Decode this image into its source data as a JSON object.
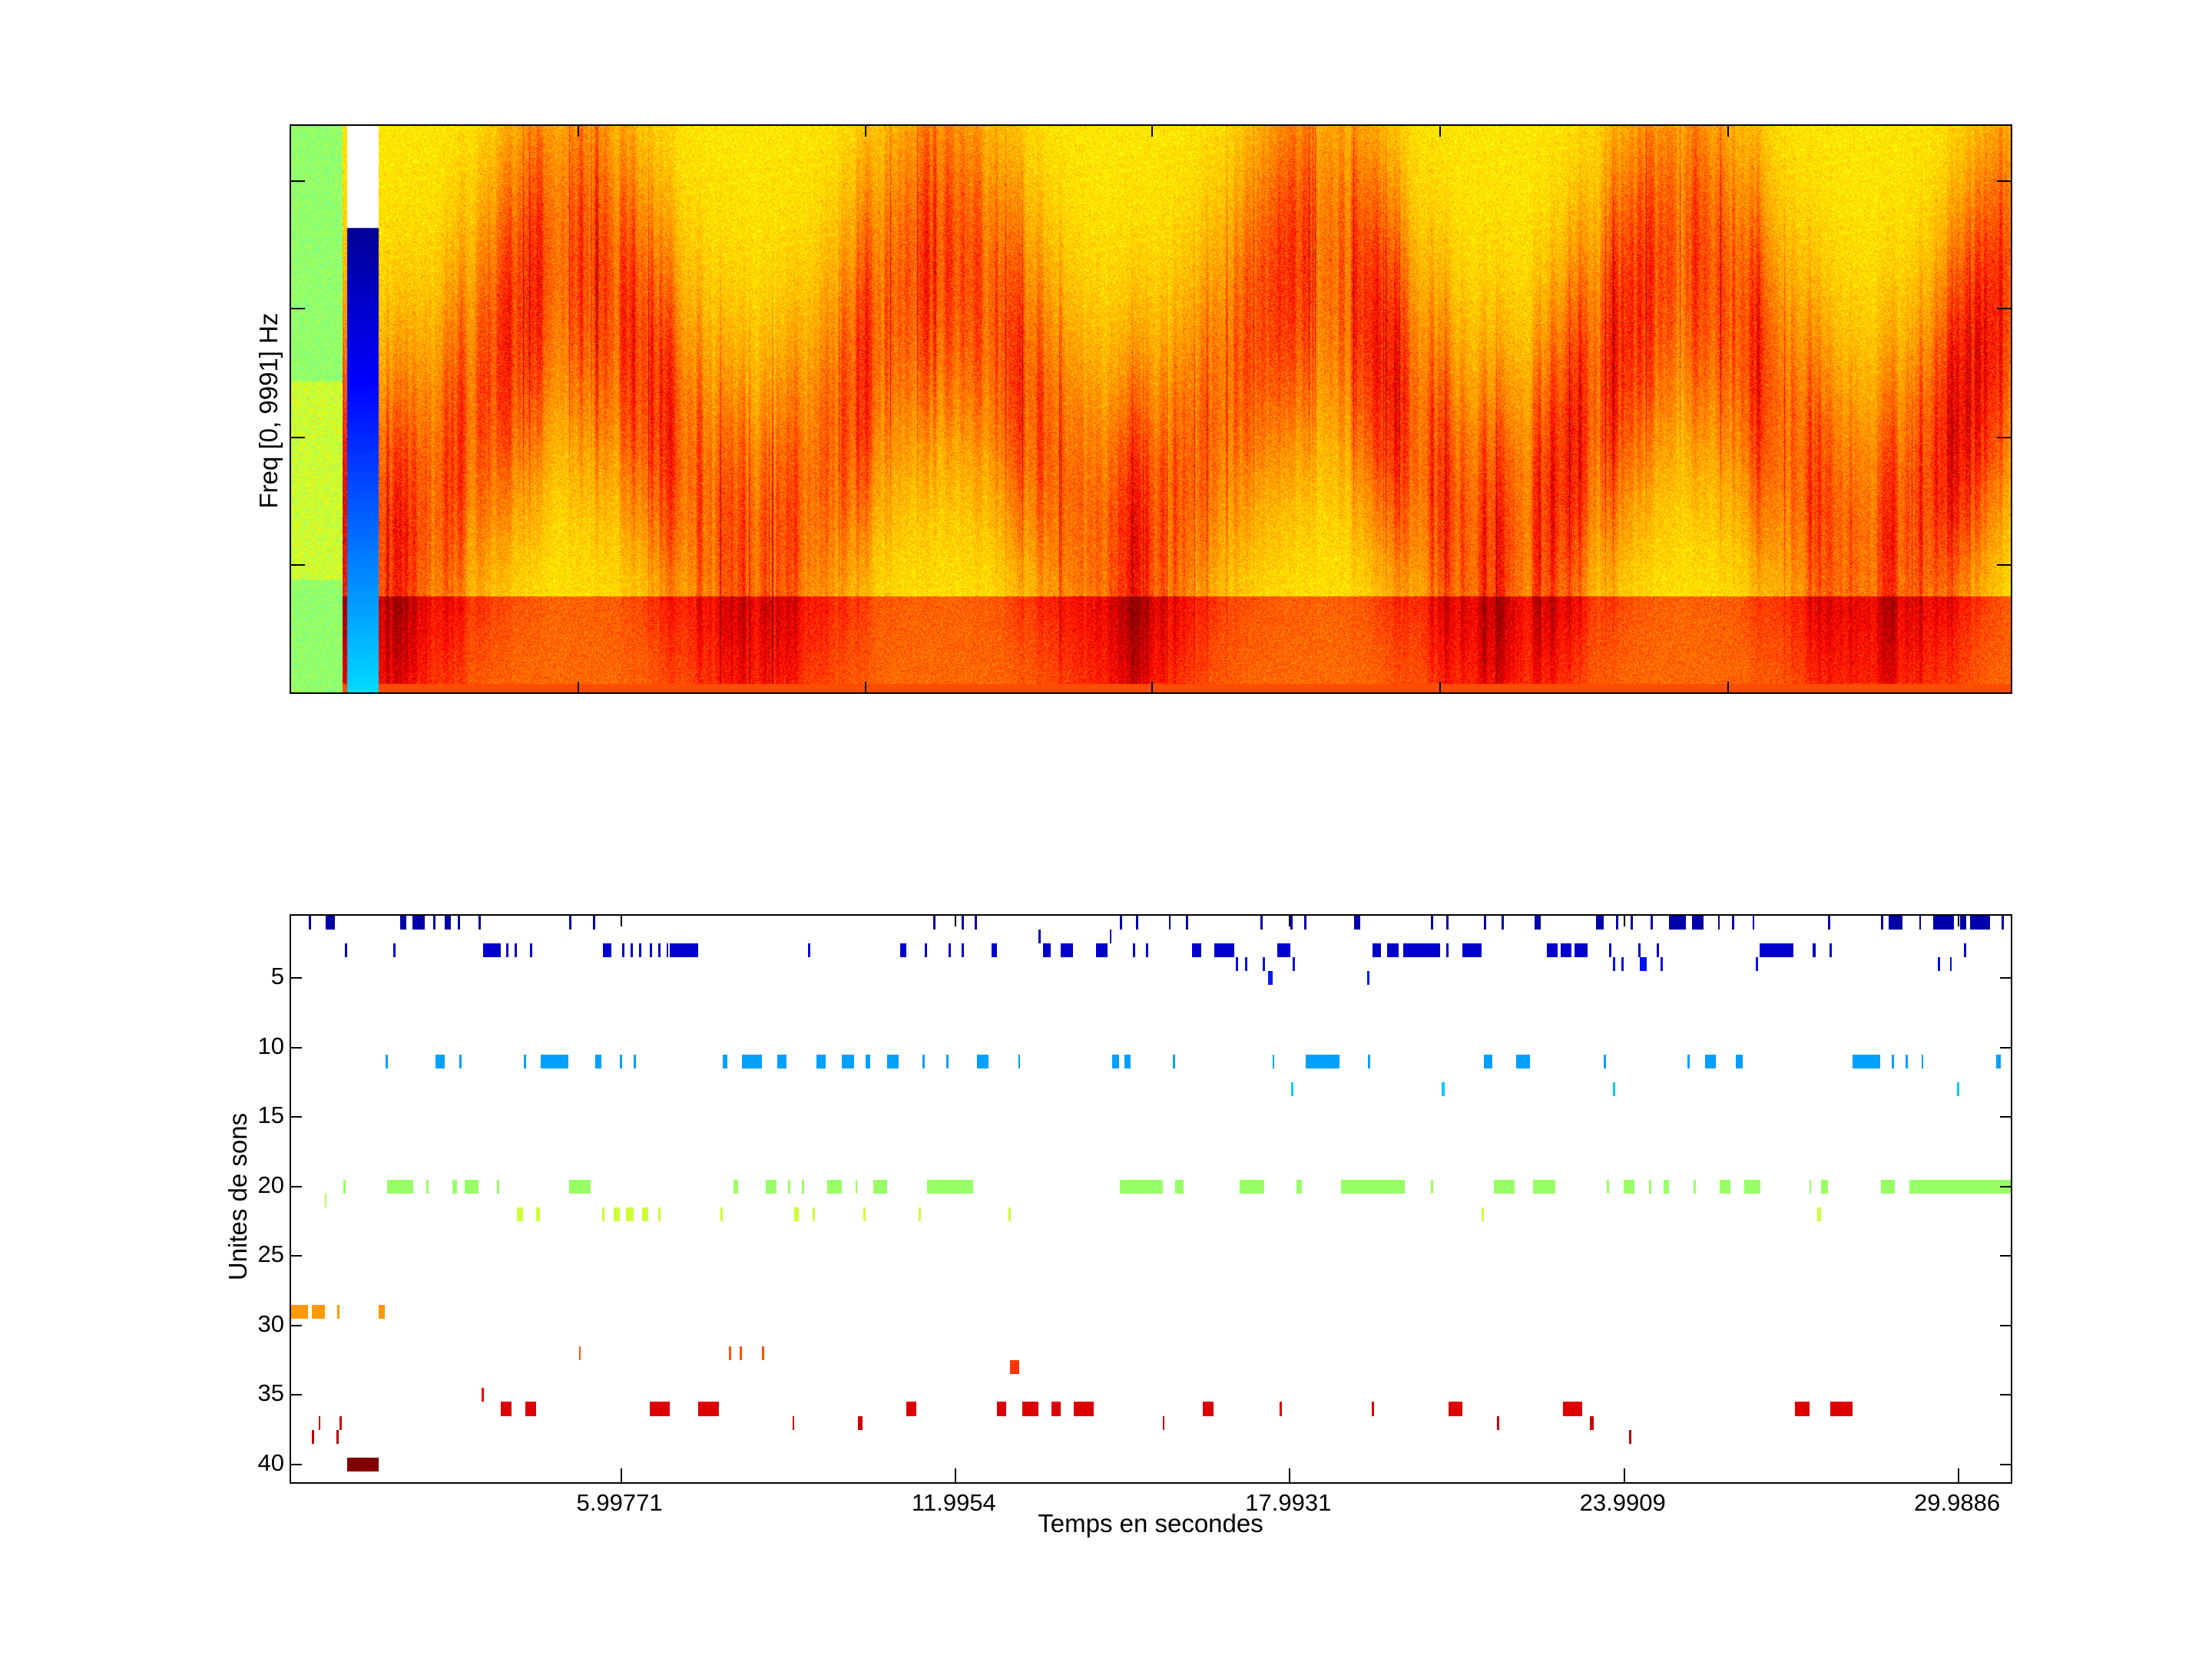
{
  "chart_data": [
    {
      "type": "heatmap",
      "title": "",
      "xlabel": "",
      "ylabel": "Freq [0, 9991] Hz",
      "frequency_range_hz": [
        0,
        9991
      ],
      "colormap": "jet",
      "xticklabels": [],
      "yticklabels": []
    },
    {
      "type": "bar",
      "subtype": "event-raster",
      "title": "",
      "xlabel": "Temps en secondes",
      "ylabel": "Unites de sons",
      "xlim": [
        0.08,
        30.98
      ],
      "ylim": [
        0.5,
        41.5
      ],
      "y_reversed": true,
      "xticks": [
        {
          "value": 5.99771,
          "label": "5.99771"
        },
        {
          "value": 11.9954,
          "label": "11.9954"
        },
        {
          "value": 17.9931,
          "label": "17.9931"
        },
        {
          "value": 23.9909,
          "label": "23.9909"
        },
        {
          "value": 29.9886,
          "label": "29.9886"
        }
      ],
      "yticks": [
        {
          "value": 5,
          "label": "5"
        },
        {
          "value": 10,
          "label": "10"
        },
        {
          "value": 15,
          "label": "15"
        },
        {
          "value": 20,
          "label": "20"
        },
        {
          "value": 25,
          "label": "25"
        },
        {
          "value": 30,
          "label": "30"
        },
        {
          "value": 35,
          "label": "35"
        },
        {
          "value": 40,
          "label": "40"
        }
      ],
      "rows": [
        {
          "unit": 1,
          "color": "#0000aa",
          "events": [
            [
              0.4
            ],
            [
              0.7,
              0.87
            ],
            [
              2.04,
              2.14
            ],
            [
              2.25,
              2.48
            ],
            [
              2.63
            ],
            [
              2.84,
              2.95
            ],
            [
              3.07
            ],
            [
              3.44
            ],
            [
              5.07
            ],
            [
              5.49
            ],
            [
              11.6
            ],
            [
              12.11
            ],
            [
              12.34
            ],
            [
              14.95
            ],
            [
              15.24
            ],
            [
              15.82
            ],
            [
              16.13
            ],
            [
              17.47
            ],
            [
              18.0
            ],
            [
              18.25
            ],
            [
              19.14,
              19.25
            ],
            [
              20.52
            ],
            [
              20.8
            ],
            [
              21.48
            ],
            [
              21.79
            ],
            [
              22.39,
              22.49
            ],
            [
              23.49,
              23.62
            ],
            [
              23.85
            ],
            [
              24.11
            ],
            [
              24.47
            ],
            [
              24.8,
              25.1
            ],
            [
              25.21,
              25.42
            ],
            [
              25.67
            ],
            [
              25.93
            ],
            [
              26.29
            ],
            [
              27.65
            ],
            [
              28.6
            ],
            [
              28.73,
              28.98
            ],
            [
              29.28
            ],
            [
              29.53,
              29.91
            ],
            [
              30.02,
              30.13
            ],
            [
              30.19,
              30.55
            ],
            [
              30.76
            ]
          ]
        },
        {
          "unit": 2,
          "color": "#0000b8",
          "events": [
            [
              13.48
            ],
            [
              14.76
            ]
          ]
        },
        {
          "unit": 3,
          "color": "#0000cc",
          "events": [
            [
              1.04
            ],
            [
              1.91
            ],
            [
              3.52,
              3.84
            ],
            [
              3.94
            ],
            [
              4.09
            ],
            [
              4.37
            ],
            [
              5.68,
              5.83
            ],
            [
              6.02
            ],
            [
              6.17
            ],
            [
              6.32
            ],
            [
              6.51
            ],
            [
              6.66
            ],
            [
              6.81
            ],
            [
              6.87,
              7.38
            ],
            [
              9.35
            ],
            [
              11.0,
              11.11
            ],
            [
              11.45
            ],
            [
              11.87
            ],
            [
              12.11
            ],
            [
              12.64,
              12.74
            ],
            [
              13.57,
              13.7
            ],
            [
              13.89,
              14.1
            ],
            [
              14.52,
              14.73
            ],
            [
              15.18
            ],
            [
              15.41
            ],
            [
              16.24,
              16.41
            ],
            [
              16.64,
              17.0
            ],
            [
              17.77,
              18.0
            ],
            [
              19.48,
              19.63
            ],
            [
              19.74,
              19.95
            ],
            [
              20.03,
              20.69
            ],
            [
              20.8
            ],
            [
              21.09,
              21.43
            ],
            [
              22.6,
              22.8
            ],
            [
              22.85,
              23.05
            ],
            [
              23.1,
              23.34
            ],
            [
              23.72
            ],
            [
              24.25
            ],
            [
              24.57
            ],
            [
              26.42,
              27.03
            ],
            [
              27.37,
              27.43
            ],
            [
              27.67
            ],
            [
              30.08
            ]
          ]
        },
        {
          "unit": 4,
          "color": "#0011ee",
          "events": [
            [
              17.02
            ],
            [
              17.19
            ],
            [
              17.51
            ],
            [
              18.04
            ],
            [
              23.79
            ],
            [
              23.94
            ],
            [
              24.27,
              24.4
            ],
            [
              24.64
            ],
            [
              26.35
            ],
            [
              29.62
            ],
            [
              29.83
            ]
          ]
        },
        {
          "unit": 5,
          "color": "#0018ff",
          "events": [
            [
              17.6,
              17.68
            ],
            [
              19.38
            ]
          ]
        },
        {
          "unit": 11,
          "color": "#00a0ff",
          "events": [
            [
              1.78
            ],
            [
              2.67,
              2.84
            ],
            [
              3.1
            ],
            [
              4.26
            ],
            [
              4.56,
              5.05
            ],
            [
              5.53,
              5.64
            ],
            [
              5.98
            ],
            [
              6.23
            ],
            [
              7.82,
              7.91
            ],
            [
              8.16,
              8.52
            ],
            [
              8.8,
              8.97
            ],
            [
              9.5,
              9.67
            ],
            [
              9.96,
              10.18
            ],
            [
              10.39,
              10.47
            ],
            [
              10.77,
              10.98
            ],
            [
              11.41
            ],
            [
              11.83
            ],
            [
              12.38,
              12.59
            ],
            [
              13.12
            ],
            [
              14.8,
              14.93
            ],
            [
              15.03,
              15.14
            ],
            [
              15.9
            ],
            [
              17.68
            ],
            [
              18.28,
              18.89
            ],
            [
              19.4
            ],
            [
              21.48,
              21.62
            ],
            [
              22.05,
              22.3
            ],
            [
              23.62
            ],
            [
              25.12
            ],
            [
              25.44,
              25.63
            ],
            [
              25.99,
              26.12
            ],
            [
              28.09,
              28.58
            ],
            [
              28.79
            ],
            [
              29.04
            ],
            [
              29.32
            ],
            [
              30.66,
              30.74
            ]
          ]
        },
        {
          "unit": 13,
          "color": "#00ccff",
          "events": [
            [
              18.02
            ],
            [
              20.71,
              20.77
            ],
            [
              23.79
            ],
            [
              29.96
            ]
          ]
        },
        {
          "unit": 20,
          "color": "#99ff66",
          "events": [
            [
              1.02
            ],
            [
              1.8,
              2.27
            ],
            [
              2.5
            ],
            [
              2.97,
              3.05
            ],
            [
              3.2,
              3.44
            ],
            [
              3.77
            ],
            [
              5.07,
              5.45
            ],
            [
              8.01,
              8.1
            ],
            [
              8.59,
              8.78
            ],
            [
              8.99
            ],
            [
              9.24
            ],
            [
              9.69,
              9.96
            ],
            [
              10.2
            ],
            [
              10.52,
              10.77
            ],
            [
              11.49,
              12.32
            ],
            [
              14.95,
              15.71
            ],
            [
              15.94,
              16.09
            ],
            [
              17.09,
              17.53
            ],
            [
              18.11,
              18.21
            ],
            [
              18.91,
              20.06
            ],
            [
              20.52
            ],
            [
              21.65,
              22.03
            ],
            [
              22.35,
              22.75
            ],
            [
              23.68
            ],
            [
              23.98,
              24.17
            ],
            [
              24.44
            ],
            [
              24.7,
              24.8
            ],
            [
              25.23
            ],
            [
              25.7,
              25.89
            ],
            [
              26.14,
              26.44
            ],
            [
              27.31
            ],
            [
              27.52,
              27.65
            ],
            [
              28.6,
              28.85
            ],
            [
              29.11,
              30.97
            ]
          ]
        },
        {
          "unit": 21,
          "color": "#b0ff50",
          "events": [
            [
              0.68
            ]
          ]
        },
        {
          "unit": 22,
          "color": "#ccff33",
          "events": [
            [
              4.13,
              4.24
            ],
            [
              4.47,
              4.54
            ],
            [
              5.66
            ],
            [
              5.87,
              5.98
            ],
            [
              6.09,
              6.23
            ],
            [
              6.38,
              6.49
            ],
            [
              6.66
            ],
            [
              7.78
            ],
            [
              9.1,
              9.18
            ],
            [
              9.43
            ],
            [
              10.35
            ],
            [
              11.34
            ],
            [
              12.95
            ],
            [
              21.43
            ],
            [
              27.45,
              27.52
            ]
          ]
        },
        {
          "unit": 29,
          "color": "#ff9900",
          "events": [
            [
              0.06,
              0.38
            ],
            [
              0.45,
              0.68
            ],
            [
              0.91
            ],
            [
              1.65,
              1.76
            ]
          ]
        },
        {
          "unit": 32,
          "color": "#ff5500",
          "events": [
            [
              5.24
            ],
            [
              7.93
            ],
            [
              8.12
            ],
            [
              8.52
            ]
          ]
        },
        {
          "unit": 33,
          "color": "#ff3300",
          "events": [
            [
              12.97,
              13.14
            ]
          ]
        },
        {
          "unit": 35,
          "color": "#ee0000",
          "events": [
            [
              3.5
            ]
          ]
        },
        {
          "unit": 36,
          "color": "#dd0000",
          "events": [
            [
              3.84,
              4.03
            ],
            [
              4.28,
              4.47
            ],
            [
              6.51,
              6.87
            ],
            [
              7.38,
              7.76
            ],
            [
              11.11,
              11.3
            ],
            [
              12.74,
              12.91
            ],
            [
              13.19,
              13.48
            ],
            [
              13.72,
              13.89
            ],
            [
              14.12,
              14.48
            ],
            [
              16.43,
              16.62
            ],
            [
              17.81
            ],
            [
              19.46
            ],
            [
              20.84,
              21.09
            ],
            [
              22.9,
              23.24
            ],
            [
              27.05,
              27.31
            ],
            [
              27.69,
              28.09
            ]
          ]
        },
        {
          "unit": 37,
          "color": "#cc0000",
          "events": [
            [
              0.57
            ],
            [
              0.95
            ],
            [
              9.07
            ],
            [
              10.24,
              10.33
            ],
            [
              15.71
            ],
            [
              21.71
            ],
            [
              23.38,
              23.45
            ]
          ]
        },
        {
          "unit": 38,
          "color": "#bb0000",
          "events": [
            [
              0.45
            ],
            [
              0.89
            ],
            [
              24.08
            ]
          ]
        },
        {
          "unit": 40,
          "color": "#800000",
          "events": [
            [
              1.08,
              1.65
            ]
          ]
        }
      ]
    }
  ]
}
